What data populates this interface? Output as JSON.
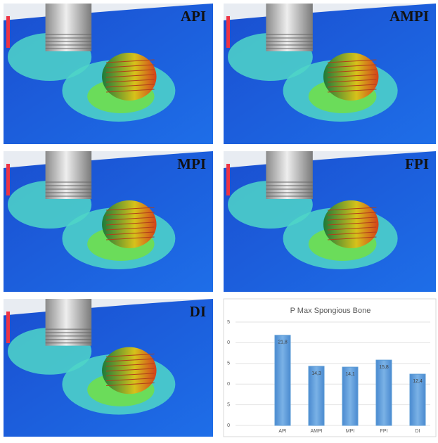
{
  "panels": [
    {
      "label": "API"
    },
    {
      "label": "AMPI"
    },
    {
      "label": "MPI"
    },
    {
      "label": "FPI"
    },
    {
      "label": "DI"
    }
  ],
  "chart_data": {
    "type": "bar",
    "title": "P Max Spongious Bone",
    "categories": [
      "API",
      "AMPI",
      "MPI",
      "FPI",
      "DI"
    ],
    "values": [
      21.8,
      14.3,
      14.1,
      15.8,
      12.4
    ],
    "value_labels": [
      "21,8",
      "14,3",
      "14,1",
      "15,8",
      "12,4"
    ],
    "color": "#5b9bd5",
    "ylim": [
      0,
      25
    ],
    "yticks": [
      0,
      {
        "value": 5,
        "label": "5"
      },
      {
        "value": 10,
        "label": "0"
      },
      {
        "value": 15,
        "label": "5"
      },
      {
        "value": 20,
        "label": "0"
      },
      {
        "value": 25,
        "label": "5"
      }
    ],
    "grid": true
  }
}
